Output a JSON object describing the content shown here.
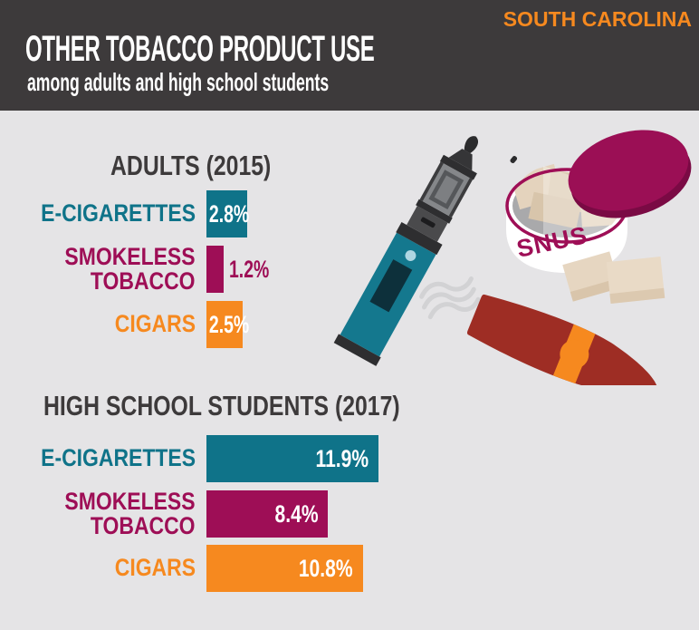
{
  "header": {
    "region_label": "SOUTH CAROLINA",
    "title": "OTHER TOBACCO PRODUCT USE",
    "subtitle": "among adults and high school students"
  },
  "colors": {
    "header_bg": "#3d3a3b",
    "body_bg": "#e5e4e6",
    "teal": "#0f7389",
    "magenta": "#9e0e56",
    "orange": "#f6891f",
    "heading_text": "#3d3a3b",
    "value_on_bar": "#ffffff"
  },
  "sections": [
    {
      "heading": "ADULTS (2015)",
      "rows": [
        {
          "label": "E-CIGARETTES",
          "value_label": "2.8%",
          "pct": 2.8
        },
        {
          "label_line1": "SMOKELESS",
          "label_line2": "TOBACCO",
          "value_label": "1.2%",
          "pct": 1.2
        },
        {
          "label": "CIGARS",
          "value_label": "2.5%",
          "pct": 2.5
        }
      ]
    },
    {
      "heading": "HIGH SCHOOL STUDENTS (2017)",
      "rows": [
        {
          "label": "E-CIGARETTES",
          "value_label": "11.9%",
          "pct": 11.9
        },
        {
          "label_line1": "SMOKELESS",
          "label_line2": "TOBACCO",
          "value_label": "8.4%",
          "pct": 8.4
        },
        {
          "label": "CIGARS",
          "value_label": "10.8%",
          "pct": 10.8
        }
      ]
    }
  ],
  "chart_data": [
    {
      "type": "bar",
      "orientation": "horizontal",
      "title": "ADULTS (2015)",
      "categories": [
        "E-CIGARETTES",
        "SMOKELESS TOBACCO",
        "CIGARS"
      ],
      "values": [
        2.8,
        1.2,
        2.5
      ],
      "data_labels": [
        "2.8%",
        "1.2%",
        "2.5%"
      ],
      "bar_colors": [
        "#0f7389",
        "#9e0e56",
        "#f6891f"
      ],
      "unit": "%",
      "xlim": [
        0,
        12
      ],
      "grid": false,
      "legend": false
    },
    {
      "type": "bar",
      "orientation": "horizontal",
      "title": "HIGH SCHOOL STUDENTS (2017)",
      "categories": [
        "E-CIGARETTES",
        "SMOKELESS TOBACCO",
        "CIGARS"
      ],
      "values": [
        11.9,
        8.4,
        10.8
      ],
      "data_labels": [
        "11.9%",
        "8.4%",
        "10.8%"
      ],
      "bar_colors": [
        "#0f7389",
        "#9e0e56",
        "#f6891f"
      ],
      "unit": "%",
      "xlim": [
        0,
        12
      ],
      "grid": false,
      "legend": false
    }
  ],
  "illustration": {
    "snus_label": "SNUS",
    "icons": [
      "vape-pen-icon",
      "smoke-icon",
      "cigar-icon",
      "snus-tin-icon",
      "snus-pouches-icon"
    ]
  }
}
